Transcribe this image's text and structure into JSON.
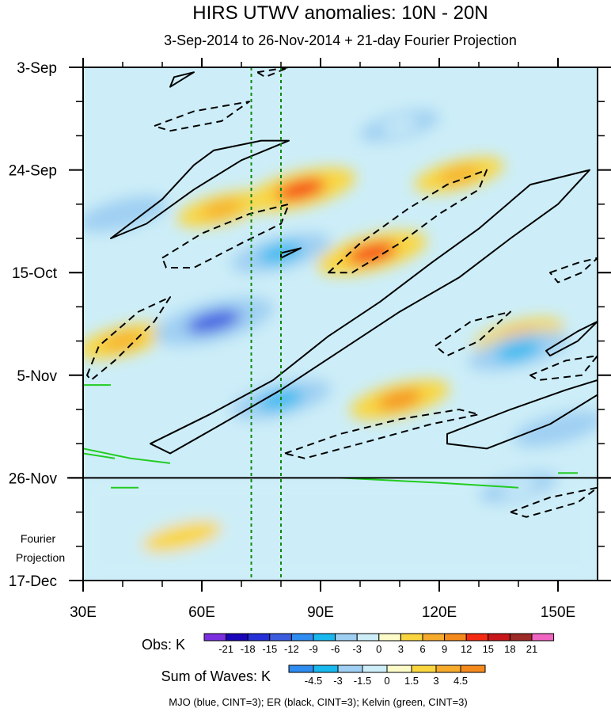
{
  "chart_data": {
    "type": "heatmap",
    "title": "HIRS UTWV anomalies: 10N - 20N",
    "subtitle": "3-Sep-2014 to 26-Nov-2014 + 21-day Fourier Projection",
    "x_axis": {
      "range": [
        30,
        160
      ],
      "ticks": [
        {
          "value": 30,
          "label": "30E"
        },
        {
          "value": 60,
          "label": "60E"
        },
        {
          "value": 90,
          "label": "90E"
        },
        {
          "value": 120,
          "label": "120E"
        },
        {
          "value": 150,
          "label": "150E"
        }
      ]
    },
    "y_axis": {
      "range_days": [
        0,
        105
      ],
      "direction": "time increases downward",
      "ticks": [
        {
          "day": 0,
          "label": "3-Sep"
        },
        {
          "day": 21,
          "label": "24-Sep"
        },
        {
          "day": 42,
          "label": "15-Oct"
        },
        {
          "day": 63,
          "label": "5-Nov"
        },
        {
          "day": 84,
          "label": "26-Nov"
        },
        {
          "day": 105,
          "label": "17-Dec"
        }
      ],
      "minor_tick_interval_days": 7
    },
    "observation_end_day": 84,
    "projection_label": [
      "Fourier",
      "Projection"
    ],
    "reference_longitudes": [
      72.5,
      80
    ],
    "obs_colorbar": {
      "label": "Obs: K",
      "levels": [
        "-21",
        "-18",
        "-15",
        "-12",
        "-9",
        "-6",
        "-3",
        "0",
        "3",
        "6",
        "9",
        "12",
        "15",
        "18",
        "21"
      ],
      "colors": [
        "#7b2fe0",
        "#1a06b8",
        "#2530d8",
        "#3c5ce0",
        "#2f8cf0",
        "#19b8ef",
        "#9fcff2",
        "#cdeef8",
        "#fdfbc9",
        "#f9d640",
        "#f6ab2c",
        "#f58a1c",
        "#f52a12",
        "#c8171b",
        "#9c2a26",
        "#f064c2"
      ]
    },
    "waves_colorbar": {
      "label": "Sum of Waves: K",
      "levels": [
        "-4.5",
        "-3",
        "-1.5",
        "0",
        "1.5",
        "3",
        "4.5"
      ],
      "colors": [
        "#2f8cf0",
        "#19b8ef",
        "#9fcff2",
        "#cdeef8",
        "#fdfbc9",
        "#f9d640",
        "#f6ab2c",
        "#f58a1c"
      ]
    },
    "legend_note": "MJO (blue, CINT=3); ER (black, CINT=3); Kelvin (green, CINT=3)",
    "anomaly_features": [
      {
        "sign": "positive",
        "lon": 40,
        "day": 56,
        "magnitude_k": 6
      },
      {
        "sign": "positive",
        "lon": 65,
        "day": 29,
        "magnitude_k": 6
      },
      {
        "sign": "positive",
        "lon": 85,
        "day": 25,
        "magnitude_k": 12
      },
      {
        "sign": "positive",
        "lon": 103,
        "day": 38,
        "magnitude_k": 12
      },
      {
        "sign": "positive",
        "lon": 110,
        "day": 68,
        "magnitude_k": 9
      },
      {
        "sign": "positive",
        "lon": 125,
        "day": 22,
        "magnitude_k": 6
      },
      {
        "sign": "positive",
        "lon": 140,
        "day": 55,
        "magnitude_k": 6
      },
      {
        "sign": "positive",
        "lon": 55,
        "day": 96,
        "magnitude_k": 3
      },
      {
        "sign": "negative",
        "lon": 63,
        "day": 52,
        "magnitude_k": -15
      },
      {
        "sign": "negative",
        "lon": 40,
        "day": 30,
        "magnitude_k": -6
      },
      {
        "sign": "negative",
        "lon": 80,
        "day": 38,
        "magnitude_k": -9
      },
      {
        "sign": "negative",
        "lon": 80,
        "day": 68,
        "magnitude_k": -9
      },
      {
        "sign": "negative",
        "lon": 110,
        "day": 12,
        "magnitude_k": -3
      },
      {
        "sign": "negative",
        "lon": 140,
        "day": 58,
        "magnitude_k": -9
      },
      {
        "sign": "negative",
        "lon": 150,
        "day": 74,
        "magnitude_k": -6
      },
      {
        "sign": "negative",
        "lon": 140,
        "day": 86,
        "magnitude_k": -3
      }
    ],
    "er_contours": [
      {
        "dashed": false,
        "points": [
          [
            37,
            35
          ],
          [
            50,
            27
          ],
          [
            58,
            20
          ],
          [
            63,
            17
          ],
          [
            75,
            15
          ],
          [
            82,
            15
          ],
          [
            70,
            19
          ],
          [
            58,
            25
          ],
          [
            46,
            32
          ],
          [
            37,
            35
          ]
        ]
      },
      {
        "dashed": false,
        "points": [
          [
            52,
            4
          ],
          [
            58,
            1
          ],
          [
            53,
            2
          ],
          [
            52,
            4
          ]
        ]
      },
      {
        "dashed": false,
        "points": [
          [
            47,
            77
          ],
          [
            62,
            71
          ],
          [
            78,
            64
          ],
          [
            92,
            55
          ],
          [
            105,
            48
          ],
          [
            118,
            40
          ],
          [
            130,
            33
          ],
          [
            143,
            24
          ],
          [
            158,
            21
          ],
          [
            150,
            28
          ],
          [
            138,
            35
          ],
          [
            125,
            43
          ],
          [
            110,
            50
          ],
          [
            95,
            58
          ],
          [
            80,
            66
          ],
          [
            65,
            73
          ],
          [
            52,
            79
          ],
          [
            47,
            77
          ]
        ]
      },
      {
        "dashed": false,
        "points": [
          [
            80,
            39
          ],
          [
            85,
            37
          ],
          [
            80,
            38
          ],
          [
            80,
            39
          ]
        ]
      },
      {
        "dashed": false,
        "points": [
          [
            147,
            58
          ],
          [
            155,
            54
          ],
          [
            160,
            52
          ],
          [
            155,
            56
          ],
          [
            148,
            59
          ],
          [
            147,
            58
          ]
        ]
      },
      {
        "dashed": false,
        "points": [
          [
            122,
            75
          ],
          [
            138,
            70
          ],
          [
            152,
            66
          ],
          [
            160,
            64
          ],
          [
            160,
            67
          ],
          [
            148,
            73
          ],
          [
            132,
            78
          ],
          [
            122,
            77
          ],
          [
            122,
            75
          ]
        ]
      },
      {
        "dashed": true,
        "points": [
          [
            48,
            12
          ],
          [
            58,
            9
          ],
          [
            72,
            7
          ],
          [
            65,
            11
          ],
          [
            52,
            13
          ],
          [
            48,
            12
          ]
        ]
      },
      {
        "dashed": true,
        "points": [
          [
            74,
            1
          ],
          [
            82,
            0
          ],
          [
            76,
            2
          ],
          [
            74,
            1
          ]
        ]
      },
      {
        "dashed": true,
        "points": [
          [
            50,
            39
          ],
          [
            60,
            34
          ],
          [
            72,
            30
          ],
          [
            82,
            28
          ],
          [
            80,
            32
          ],
          [
            70,
            36
          ],
          [
            58,
            41
          ],
          [
            51,
            41
          ],
          [
            50,
            39
          ]
        ]
      },
      {
        "dashed": true,
        "points": [
          [
            31,
            63
          ],
          [
            34,
            57
          ],
          [
            44,
            50
          ],
          [
            52,
            47
          ],
          [
            48,
            52
          ],
          [
            38,
            60
          ],
          [
            32,
            64
          ],
          [
            31,
            63
          ]
        ]
      },
      {
        "dashed": true,
        "points": [
          [
            92,
            42
          ],
          [
            100,
            36
          ],
          [
            112,
            29
          ],
          [
            122,
            24
          ],
          [
            132,
            21
          ],
          [
            130,
            25
          ],
          [
            120,
            30
          ],
          [
            110,
            36
          ],
          [
            98,
            42
          ],
          [
            92,
            42
          ]
        ]
      },
      {
        "dashed": true,
        "points": [
          [
            119,
            57
          ],
          [
            128,
            52
          ],
          [
            138,
            50
          ],
          [
            130,
            56
          ],
          [
            122,
            59
          ],
          [
            119,
            57
          ]
        ]
      },
      {
        "dashed": true,
        "points": [
          [
            148,
            42
          ],
          [
            155,
            40
          ],
          [
            160,
            39
          ],
          [
            156,
            42
          ],
          [
            150,
            44
          ],
          [
            148,
            42
          ]
        ]
      },
      {
        "dashed": true,
        "points": [
          [
            143,
            63
          ],
          [
            152,
            60
          ],
          [
            160,
            59
          ],
          [
            156,
            63
          ],
          [
            145,
            64
          ],
          [
            143,
            63
          ]
        ]
      },
      {
        "dashed": true,
        "points": [
          [
            81,
            79
          ],
          [
            95,
            75
          ],
          [
            110,
            72
          ],
          [
            125,
            70
          ],
          [
            130,
            71
          ],
          [
            118,
            73
          ],
          [
            100,
            77
          ],
          [
            86,
            80
          ],
          [
            81,
            79
          ]
        ]
      },
      {
        "dashed": true,
        "points": [
          [
            138,
            91
          ],
          [
            148,
            88
          ],
          [
            160,
            86
          ],
          [
            155,
            89
          ],
          [
            142,
            92
          ],
          [
            138,
            91
          ]
        ]
      }
    ],
    "kelvin_contours": [
      {
        "points": [
          [
            30,
            78
          ],
          [
            42,
            80
          ],
          [
            52,
            81
          ]
        ]
      },
      {
        "points": [
          [
            30,
            79
          ],
          [
            38,
            80
          ]
        ]
      },
      {
        "points": [
          [
            30,
            65
          ],
          [
            37,
            65
          ]
        ]
      },
      {
        "points": [
          [
            37,
            86
          ],
          [
            44,
            86
          ]
        ]
      },
      {
        "points": [
          [
            95,
            84
          ],
          [
            120,
            85
          ],
          [
            140,
            86
          ]
        ]
      },
      {
        "points": [
          [
            150,
            83
          ],
          [
            155,
            83
          ]
        ]
      }
    ],
    "mjo_contours": []
  }
}
